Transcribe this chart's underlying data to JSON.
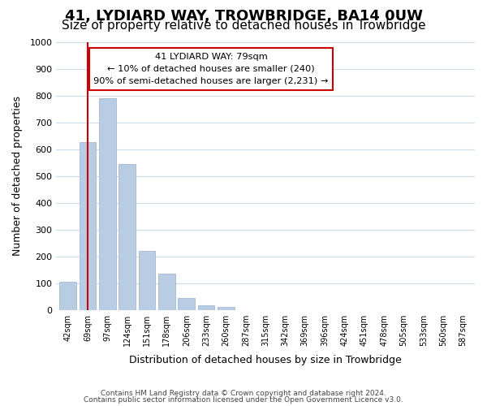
{
  "title": "41, LYDIARD WAY, TROWBRIDGE, BA14 0UW",
  "subtitle": "Size of property relative to detached houses in Trowbridge",
  "xlabel": "Distribution of detached houses by size in Trowbridge",
  "ylabel": "Number of detached properties",
  "bar_labels": [
    "42sqm",
    "69sqm",
    "97sqm",
    "124sqm",
    "151sqm",
    "178sqm",
    "206sqm",
    "233sqm",
    "260sqm",
    "287sqm",
    "315sqm",
    "342sqm",
    "369sqm",
    "396sqm",
    "424sqm",
    "451sqm",
    "478sqm",
    "505sqm",
    "533sqm",
    "560sqm",
    "587sqm"
  ],
  "bar_values": [
    105,
    625,
    790,
    545,
    220,
    135,
    45,
    18,
    10,
    0,
    0,
    0,
    0,
    0,
    0,
    0,
    0,
    0,
    0,
    0,
    0
  ],
  "bar_color": "#b8cce4",
  "bar_edge_color": "#9bb0cc",
  "vline_x": 1.0,
  "vline_color": "#cc0000",
  "ylim": [
    0,
    1000
  ],
  "yticks": [
    0,
    100,
    200,
    300,
    400,
    500,
    600,
    700,
    800,
    900,
    1000
  ],
  "annotation_title": "41 LYDIARD WAY: 79sqm",
  "annotation_line1": "← 10% of detached houses are smaller (240)",
  "annotation_line2": "90% of semi-detached houses are larger (2,231) →",
  "annotation_box_color": "#ffffff",
  "annotation_box_edge": "#cc0000",
  "footnote1": "Contains HM Land Registry data © Crown copyright and database right 2024.",
  "footnote2": "Contains public sector information licensed under the Open Government Licence v3.0.",
  "bg_color": "#ffffff",
  "grid_color": "#ccddee",
  "title_fontsize": 13,
  "subtitle_fontsize": 11
}
